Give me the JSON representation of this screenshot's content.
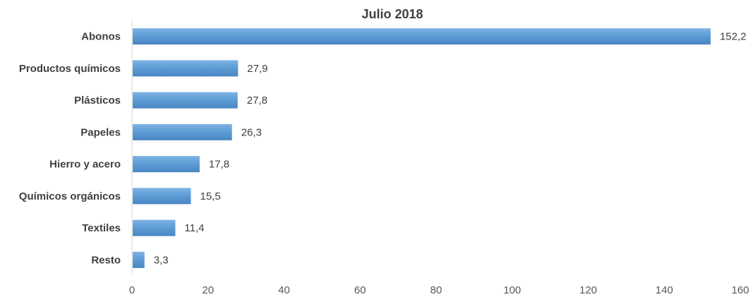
{
  "chart_data": {
    "type": "bar",
    "orientation": "horizontal",
    "title": "Julio 2018",
    "xlabel": "",
    "ylabel": "",
    "categories": [
      "Abonos",
      "Productos químicos",
      "Plásticos",
      "Papeles",
      "Hierro y acero",
      "Químicos orgánicos",
      "Textiles",
      "Resto"
    ],
    "values": [
      152.2,
      27.9,
      27.8,
      26.3,
      17.8,
      15.5,
      11.4,
      3.3
    ],
    "value_labels": [
      "152,2",
      "27,9",
      "27,8",
      "26,3",
      "17,8",
      "15,5",
      "11,4",
      "3,3"
    ],
    "xlim": [
      0,
      160
    ],
    "x_ticks": [
      0,
      20,
      40,
      60,
      80,
      100,
      120,
      140,
      160
    ],
    "grid": false,
    "legend": "none",
    "bar_color": "#5b9bd5"
  }
}
